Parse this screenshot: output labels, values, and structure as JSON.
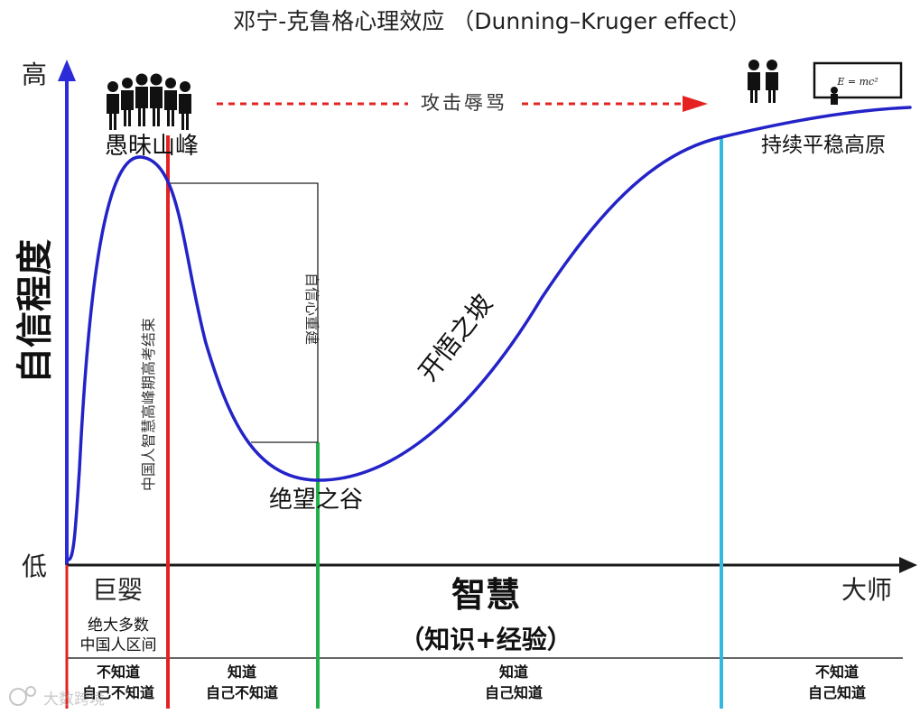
{
  "title": "邓宁-克鲁格心理效应 （Dunning–Kruger effect）",
  "y_axis": {
    "label": "自信程度",
    "high": "高",
    "low": "低"
  },
  "x_axis": {
    "label": "智慧",
    "sublabel": "（知识+经验）",
    "start": "巨婴",
    "end": "大师"
  },
  "stages": {
    "peak": "愚昧山峰",
    "valley": "绝望之谷",
    "slope": "开悟之坡",
    "plateau": "持续平稳高原"
  },
  "annotations": {
    "attack": "攻击辱骂",
    "exam_note": "中国人智慧高峰期高考结束",
    "rebuild_note": "自信心重建",
    "majority_line1": "绝大多数",
    "majority_line2": "中国人区间",
    "formula": "E = mc²"
  },
  "knowledge_levels": [
    {
      "line1": "不知道",
      "line2": "自己不知道"
    },
    {
      "line1": "知道",
      "line2": "自己不知道"
    },
    {
      "line1": "知道",
      "line2": "自己知道"
    },
    {
      "line1": "不知道",
      "line2": "自己知道"
    }
  ],
  "watermark": "大数跨境",
  "colors": {
    "curve": "#2323c8",
    "axis_y": "#2b2bd8",
    "axis_x": "#1a1a1a",
    "peak_line": "#e52222",
    "valley_line": "#22b04a",
    "plateau_line": "#35b8e0",
    "arrow": "#e52222"
  }
}
